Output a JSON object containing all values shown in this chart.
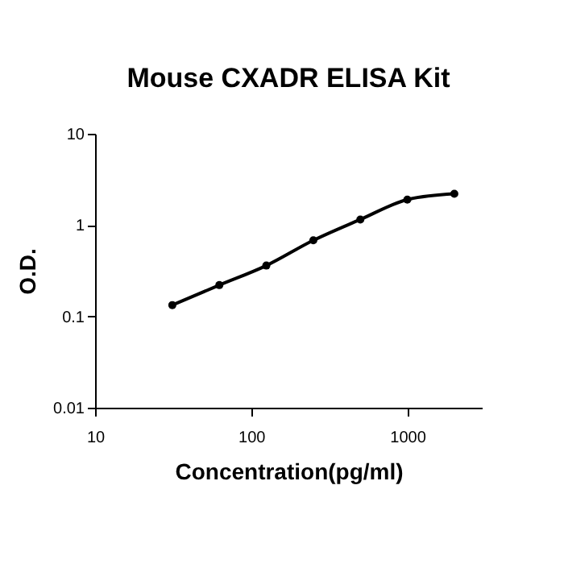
{
  "chart_data": {
    "type": "line",
    "title": "Mouse CXADR ELISA Kit",
    "xlabel": "Concentration(pg/ml)",
    "ylabel": "O.D.",
    "x": [
      31.25,
      62.5,
      125,
      250,
      500,
      1000,
      2000
    ],
    "series": [
      {
        "color": "#000000",
        "values": [
          0.133,
          0.22,
          0.36,
          0.68,
          1.15,
          1.9,
          2.2
        ]
      }
    ],
    "log": "xy",
    "xlim": [
      10,
      3000
    ],
    "xticks": [
      10,
      100,
      1000
    ],
    "ylim": [
      0.01,
      10
    ],
    "yticks": [
      0.01,
      0.1,
      1,
      10
    ],
    "grid": false,
    "marker": "circle",
    "line_style": "solid"
  }
}
